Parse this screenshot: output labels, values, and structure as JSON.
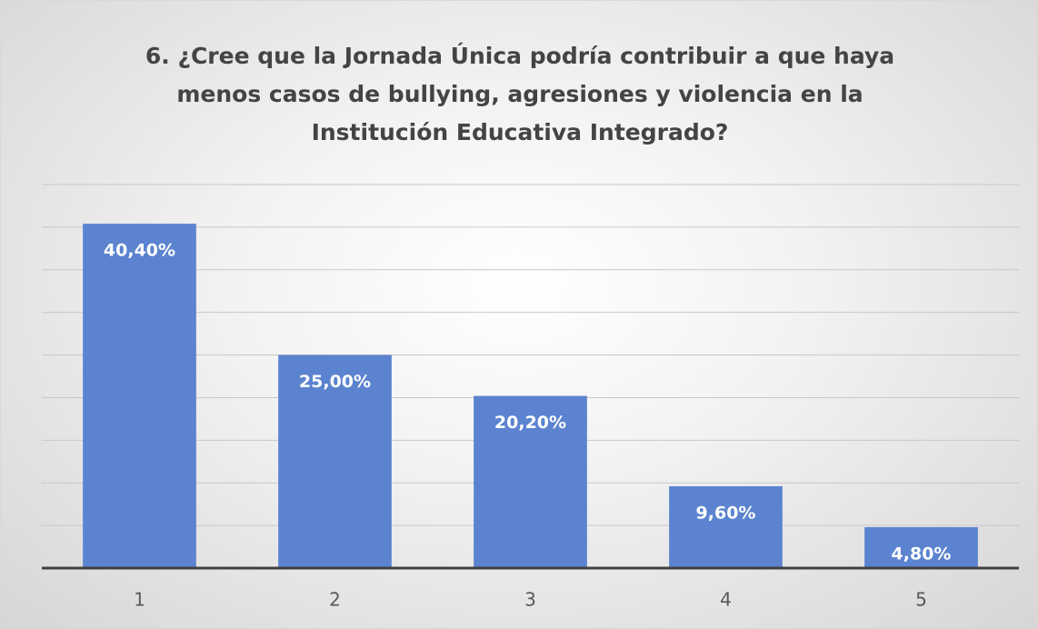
{
  "chart_data": {
    "type": "bar",
    "title": "6. ¿Cree que la Jornada Única podría contribuir a que haya menos casos de bullying, agresiones y violencia en la Institución Educativa Integrado?",
    "categories": [
      "1",
      "2",
      "3",
      "4",
      "5"
    ],
    "values": [
      40.4,
      25,
      20.2,
      9.6,
      4.8
    ],
    "value_labels": [
      "40,40%",
      "25,00%",
      "20,20%",
      "9,60%",
      "4,80%"
    ],
    "color": "#5b83cf",
    "ylim": [
      0,
      45
    ],
    "yticks": [
      0,
      5,
      10,
      15,
      20,
      25,
      30,
      35,
      40,
      45
    ],
    "grid": true
  }
}
